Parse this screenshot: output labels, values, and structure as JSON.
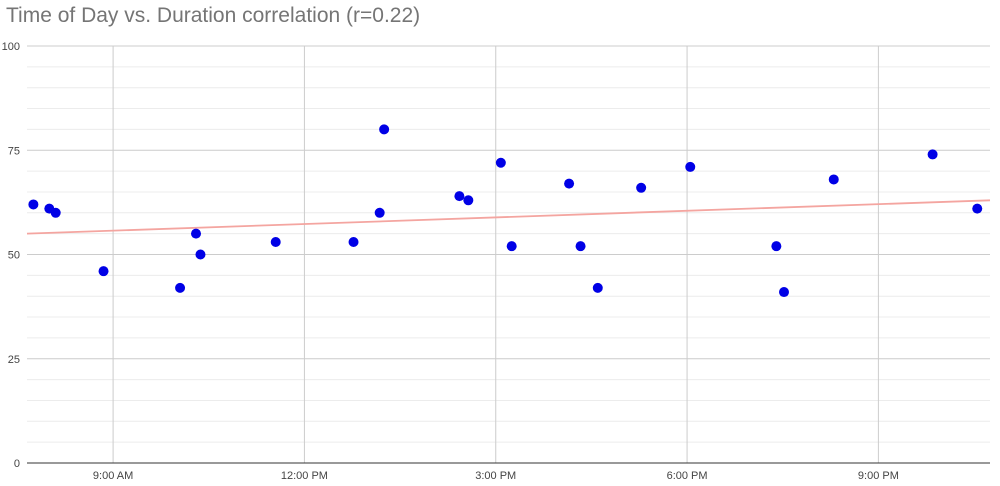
{
  "chart_data": {
    "type": "scatter",
    "title": "Time of Day vs. Duration correlation (r=0.22)",
    "xlabel": "",
    "ylabel": "",
    "x_tick_labels": [
      "9:00 AM",
      "12:00 PM",
      "3:00 PM",
      "6:00 PM",
      "9:00 PM"
    ],
    "x_tick_values": [
      9,
      12,
      15,
      18,
      21
    ],
    "xlim": [
      7.65,
      22.75
    ],
    "y_tick_labels": [
      "0",
      "25",
      "50",
      "75",
      "100"
    ],
    "y_tick_values": [
      0,
      25,
      50,
      75,
      100
    ],
    "ylim": [
      0,
      100
    ],
    "grid": true,
    "legend": "none",
    "points": [
      {
        "x": 7.75,
        "y": 62
      },
      {
        "x": 8.0,
        "y": 61
      },
      {
        "x": 8.1,
        "y": 60
      },
      {
        "x": 8.85,
        "y": 46
      },
      {
        "x": 10.05,
        "y": 42
      },
      {
        "x": 10.3,
        "y": 55
      },
      {
        "x": 10.37,
        "y": 50
      },
      {
        "x": 11.55,
        "y": 53
      },
      {
        "x": 12.77,
        "y": 53
      },
      {
        "x": 13.18,
        "y": 60
      },
      {
        "x": 13.25,
        "y": 80
      },
      {
        "x": 14.43,
        "y": 64
      },
      {
        "x": 14.57,
        "y": 63
      },
      {
        "x": 15.08,
        "y": 72
      },
      {
        "x": 15.25,
        "y": 52
      },
      {
        "x": 16.15,
        "y": 67
      },
      {
        "x": 16.33,
        "y": 52
      },
      {
        "x": 16.6,
        "y": 42
      },
      {
        "x": 17.28,
        "y": 66
      },
      {
        "x": 18.05,
        "y": 71
      },
      {
        "x": 19.4,
        "y": 52
      },
      {
        "x": 19.52,
        "y": 41
      },
      {
        "x": 20.3,
        "y": 68
      },
      {
        "x": 21.85,
        "y": 74
      },
      {
        "x": 22.55,
        "y": 61
      }
    ],
    "trendline": {
      "x": [
        7.65,
        22.75
      ],
      "y": [
        55,
        63
      ]
    },
    "colors": {
      "point": "#0000e6",
      "trendline": "#f4a5a0",
      "gridline_major": "#cccccc",
      "gridline_minor": "#ececec",
      "axis": "#333333",
      "title": "#757575",
      "tick_label": "#444444"
    }
  }
}
